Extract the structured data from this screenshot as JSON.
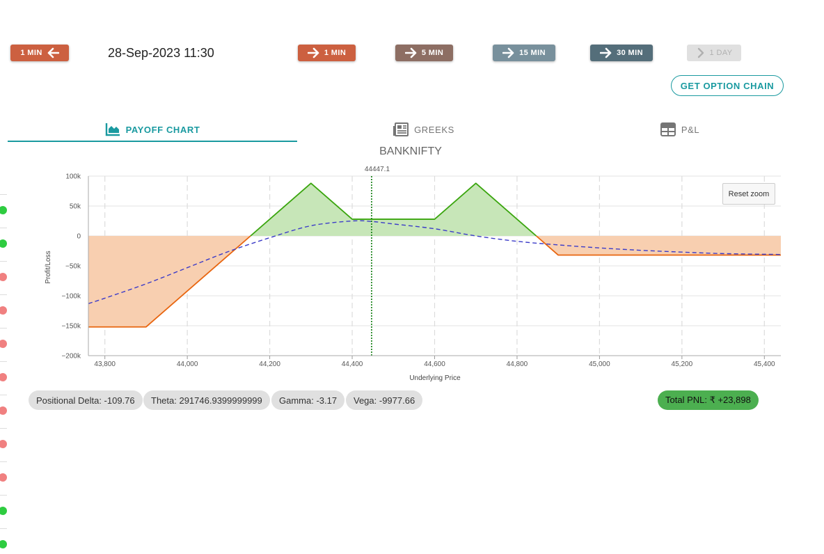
{
  "toolbar": {
    "back_label": "1 MIN",
    "datetime": "28-Sep-2023 11:30",
    "forward": [
      {
        "label": "1 MIN",
        "color": "#cc6040"
      },
      {
        "label": "5 MIN",
        "color": "#8d6e63"
      },
      {
        "label": "15 MIN",
        "color": "#78909c"
      },
      {
        "label": "30 MIN",
        "color": "#546e7a"
      },
      {
        "label": "1 DAY",
        "color": "#e0e0e0"
      }
    ],
    "back_color": "#cc6040",
    "option_chain_label": "GET OPTION CHAIN"
  },
  "tabs": [
    {
      "label": "PAYOFF CHART",
      "icon": "area-chart-icon",
      "active": true
    },
    {
      "label": "GREEKS",
      "icon": "newspaper-icon",
      "active": false
    },
    {
      "label": "P&L",
      "icon": "table-icon",
      "active": false
    }
  ],
  "chart": {
    "reset_zoom_label": "Reset zoom"
  },
  "chart_data": {
    "type": "line",
    "title": "BANKNIFTY",
    "xlabel": "Underlying Price",
    "ylabel": "Profit/Loss",
    "xlim": [
      43760,
      45440
    ],
    "ylim": [
      -200000,
      100000
    ],
    "x_ticks": [
      43800,
      44000,
      44200,
      44400,
      44600,
      44800,
      45000,
      45200,
      45400
    ],
    "x_tick_labels": [
      "43,800",
      "44,000",
      "44,200",
      "44,400",
      "44,600",
      "44,800",
      "45,000",
      "45,200",
      "45,400"
    ],
    "y_ticks": [
      100000,
      50000,
      0,
      -50000,
      -100000,
      -150000,
      -200000
    ],
    "y_tick_labels": [
      "100k",
      "50k",
      "0",
      "−50k",
      "−100k",
      "−150k",
      "−200k"
    ],
    "spot": 44447.1,
    "spot_label": "44447.1",
    "grid": true,
    "series": [
      {
        "kind": "expiry-payoff",
        "points": [
          [
            43760,
            -152000
          ],
          [
            43900,
            -152000
          ],
          [
            44300,
            88000
          ],
          [
            44400,
            28000
          ],
          [
            44600,
            28000
          ],
          [
            44700,
            88000
          ],
          [
            44900,
            -32000
          ],
          [
            45440,
            -32000
          ]
        ]
      },
      {
        "kind": "target-payoff",
        "points": [
          [
            43760,
            -113000
          ],
          [
            43800,
            -104000
          ],
          [
            43900,
            -80000
          ],
          [
            44000,
            -53000
          ],
          [
            44100,
            -26000
          ],
          [
            44200,
            -3000
          ],
          [
            44300,
            17000
          ],
          [
            44400,
            25000
          ],
          [
            44450,
            24000
          ],
          [
            44500,
            20000
          ],
          [
            44600,
            12000
          ],
          [
            44700,
            0
          ],
          [
            44800,
            -9000
          ],
          [
            44900,
            -15000
          ],
          [
            45000,
            -20000
          ],
          [
            45100,
            -24000
          ],
          [
            45200,
            -27000
          ],
          [
            45300,
            -29500
          ],
          [
            45440,
            -31000
          ]
        ]
      }
    ],
    "colors": {
      "profit_fill": "#c7e6b8",
      "loss_fill": "#f8cfb0",
      "profit_line": "#3aa50e",
      "loss_line": "#e8650f",
      "target_line": "#3b3bc8",
      "spot_line": "#0a7a0a"
    }
  },
  "greeks": {
    "delta": "Positional Delta: -109.76",
    "theta": "Theta: 291746.9399999999",
    "gamma": "Gamma: -3.17",
    "vega": "Vega: -9977.66",
    "total_pnl": "Total PNL: ₹ +23,898"
  },
  "sidebar": {
    "dots": [
      "#2ecc40",
      "#2ecc40",
      "#f08080",
      "#f08080",
      "#f08080",
      "#f08080",
      "#f08080",
      "#f08080",
      "#f08080",
      "#2ecc40",
      "#2ecc40"
    ]
  }
}
